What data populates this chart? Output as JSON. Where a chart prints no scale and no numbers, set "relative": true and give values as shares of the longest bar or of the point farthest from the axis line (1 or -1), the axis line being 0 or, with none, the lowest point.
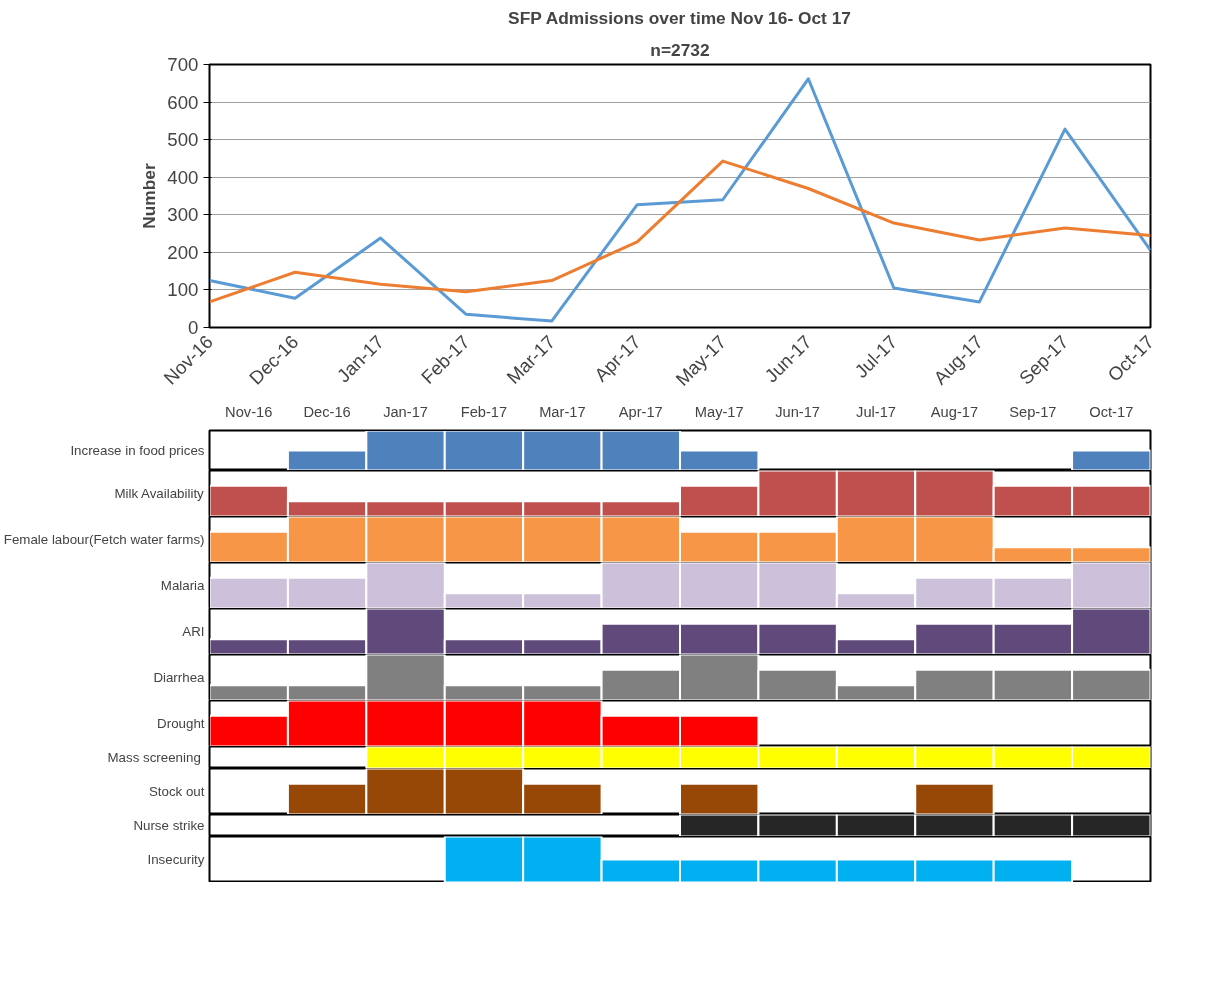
{
  "chart_data": [
    {
      "type": "line",
      "title": "SFP Admissions over time Nov 16- Oct 17",
      "subtitle": "n=2732",
      "ylabel": "Number",
      "categories": [
        "Nov-16",
        "Dec-16",
        "Jan-17",
        "Feb-17",
        "Mar-17",
        "Apr-17",
        "May-17",
        "Jun-17",
        "Jul-17",
        "Aug-17",
        "Sep-17",
        "Oct-17"
      ],
      "series": [
        {
          "color": "#5b9bd5",
          "values": [
            125,
            78,
            238,
            35,
            17,
            327,
            340,
            662,
            105,
            68,
            528,
            205
          ]
        },
        {
          "color": "#ed7d31",
          "values": [
            68,
            147,
            115,
            95,
            125,
            228,
            443,
            370,
            278,
            233,
            265,
            245
          ]
        }
      ],
      "ylim": [
        0,
        700
      ],
      "yticks": [
        0,
        100,
        200,
        300,
        400,
        500,
        600,
        700
      ],
      "grid": "y",
      "line_style": "solid"
    },
    {
      "type": "bar",
      "relative": true,
      "ylabel": "Increase in food prices",
      "tick_labels": "x",
      "color": "#4f81bd",
      "categories": [
        "Nov-16",
        "Dec-16",
        "Jan-17",
        "Feb-17",
        "Mar-17",
        "Apr-17",
        "May-17",
        "Jun-17",
        "Jul-17",
        "Aug-17",
        "Sep-17",
        "Oct-17"
      ],
      "values": [
        0,
        0.5,
        1,
        1,
        1,
        1,
        0.5,
        0,
        0,
        0,
        0,
        0.5
      ]
    },
    {
      "type": "bar",
      "relative": true,
      "ylabel": "Milk Availability",
      "tick_labels": false,
      "color": "#c0504d",
      "categories": [
        null,
        null,
        null,
        null,
        null,
        null,
        null,
        null,
        null,
        null,
        null,
        null
      ],
      "values": [
        0.67,
        0.33,
        0.33,
        0.33,
        0.33,
        0.33,
        0.67,
        1,
        1,
        1,
        0.67,
        0.67
      ]
    },
    {
      "type": "bar",
      "relative": true,
      "ylabel": "Female labour(Fetch water farms)",
      "tick_labels": false,
      "color": "#f79646",
      "categories": [
        null,
        null,
        null,
        null,
        null,
        null,
        null,
        null,
        null,
        null,
        null,
        null
      ],
      "values": [
        0.67,
        1,
        1,
        1,
        1,
        1,
        0.67,
        0.67,
        1,
        1,
        0.33,
        0.33
      ]
    },
    {
      "type": "bar",
      "relative": true,
      "ylabel": "Malaria",
      "tick_labels": false,
      "color": "#ccc0da",
      "categories": [
        null,
        null,
        null,
        null,
        null,
        null,
        null,
        null,
        null,
        null,
        null,
        null
      ],
      "values": [
        0.67,
        0.67,
        1,
        0.33,
        0.33,
        1,
        1,
        1,
        0.33,
        0.67,
        0.67,
        1
      ]
    },
    {
      "type": "bar",
      "relative": true,
      "ylabel": "ARI",
      "tick_labels": false,
      "color": "#604a7b",
      "categories": [
        null,
        null,
        null,
        null,
        null,
        null,
        null,
        null,
        null,
        null,
        null,
        null
      ],
      "values": [
        0.33,
        0.33,
        1,
        0.33,
        0.33,
        0.67,
        0.67,
        0.67,
        0.33,
        0.67,
        0.67,
        1
      ]
    },
    {
      "type": "bar",
      "relative": true,
      "ylabel": "Diarrhea",
      "tick_labels": false,
      "color": "#808080",
      "categories": [
        null,
        null,
        null,
        null,
        null,
        null,
        null,
        null,
        null,
        null,
        null,
        null
      ],
      "values": [
        0.33,
        0.33,
        1,
        0.33,
        0.33,
        0.67,
        1,
        0.67,
        0.33,
        0.67,
        0.67,
        0.67
      ]
    },
    {
      "type": "bar",
      "relative": true,
      "ylabel": "Drought",
      "tick_labels": false,
      "color": "#ff0000",
      "categories": [
        null,
        null,
        null,
        null,
        null,
        null,
        null,
        null,
        null,
        null,
        null,
        null
      ],
      "values": [
        0.67,
        1,
        1,
        1,
        1,
        0.67,
        0.67,
        0,
        0,
        0,
        0,
        0
      ]
    },
    {
      "type": "bar",
      "relative": true,
      "ylabel": "Mass  screening",
      "tick_labels": false,
      "color": "#ffff00",
      "categories": [
        null,
        null,
        null,
        null,
        null,
        null,
        null,
        null,
        null,
        null,
        null,
        null
      ],
      "values": [
        0,
        0,
        1,
        1,
        1,
        1,
        1,
        1,
        1,
        1,
        1,
        1
      ]
    },
    {
      "type": "bar",
      "relative": true,
      "ylabel": "Stock out",
      "tick_labels": false,
      "color": "#974706",
      "categories": [
        null,
        null,
        null,
        null,
        null,
        null,
        null,
        null,
        null,
        null,
        null,
        null
      ],
      "values": [
        0,
        0.67,
        1,
        1,
        0.67,
        0,
        0.67,
        0,
        0,
        0.67,
        0,
        0
      ]
    },
    {
      "type": "bar",
      "relative": true,
      "ylabel": "Nurse strike",
      "tick_labels": false,
      "color": "#262626",
      "categories": [
        null,
        null,
        null,
        null,
        null,
        null,
        null,
        null,
        null,
        null,
        null,
        null
      ],
      "values": [
        0,
        0,
        0,
        0,
        0,
        0,
        1,
        1,
        1,
        1,
        1,
        1
      ]
    },
    {
      "type": "bar",
      "relative": true,
      "ylabel": "Insecurity",
      "tick_labels": false,
      "color": "#00b0f0",
      "categories": [
        null,
        null,
        null,
        null,
        null,
        null,
        null,
        null,
        null,
        null,
        null,
        null
      ],
      "values": [
        0,
        0,
        0,
        1,
        1,
        0.5,
        0.5,
        0.5,
        0.5,
        0.5,
        0.5,
        0
      ]
    }
  ]
}
